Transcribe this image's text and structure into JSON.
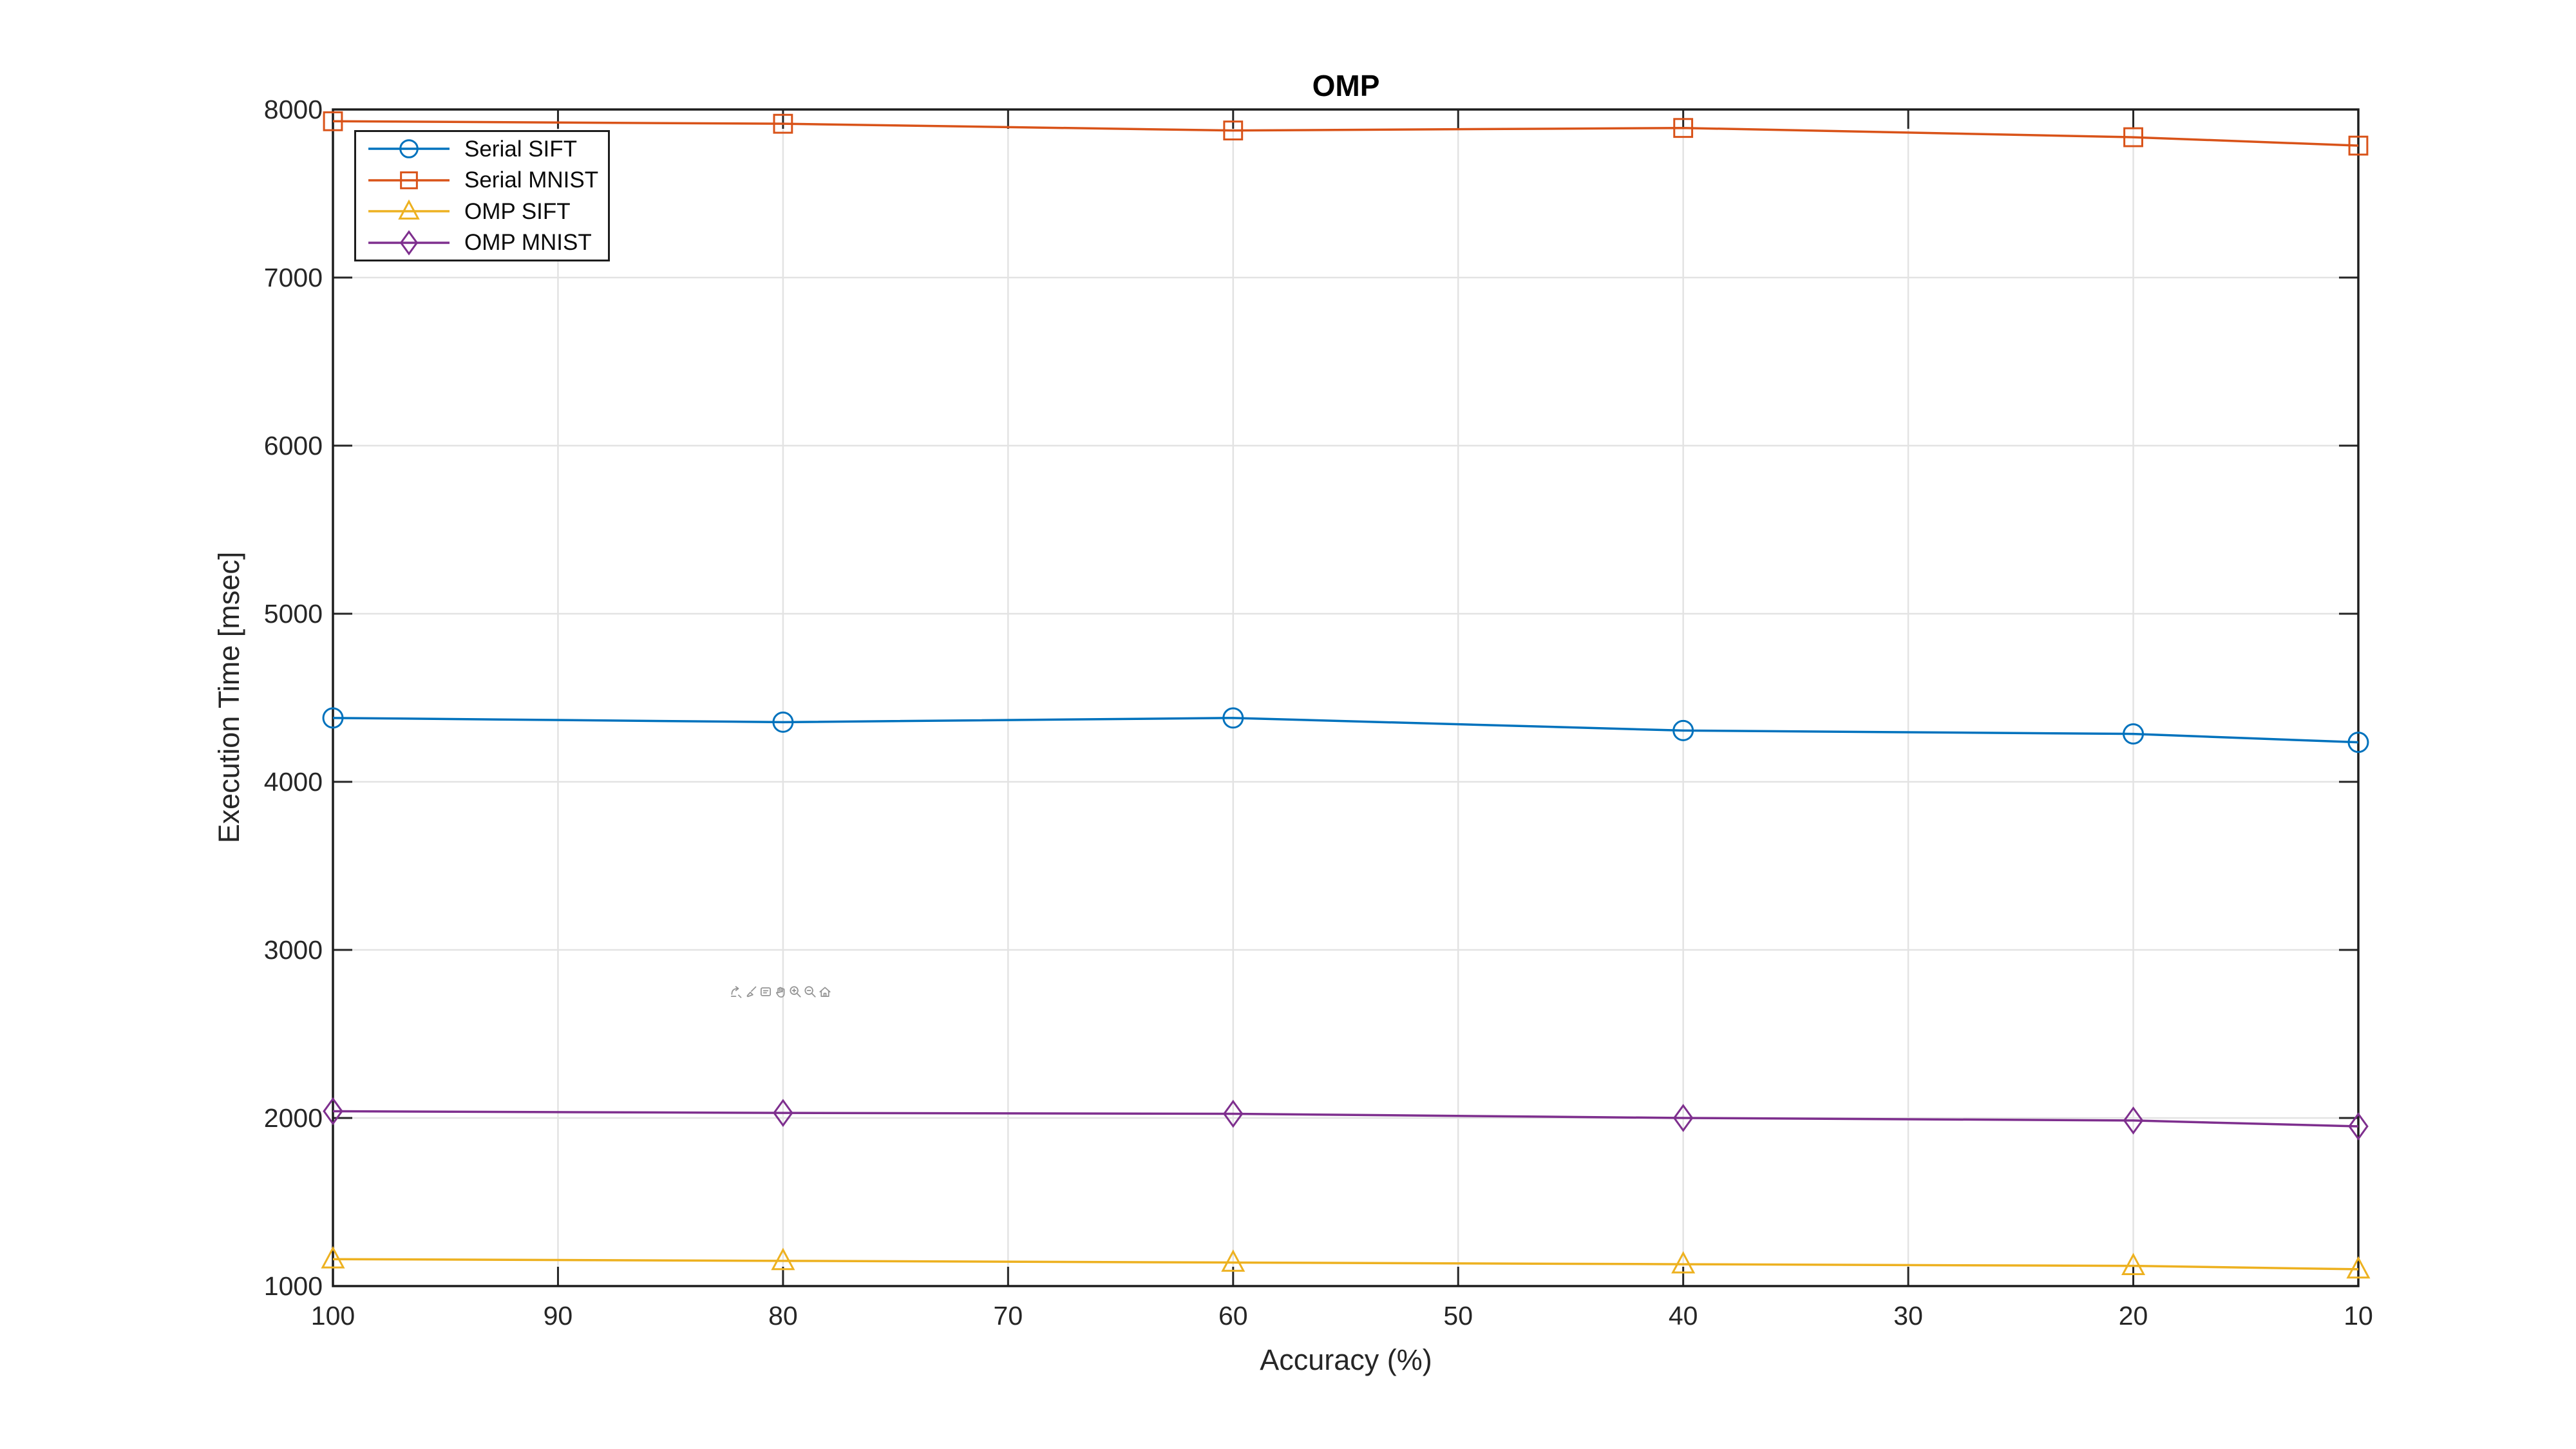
{
  "figure": {
    "background": "#ffffff"
  },
  "chart_data": {
    "type": "line",
    "title": "OMP",
    "xlabel": "Accuracy (%)",
    "ylabel": "Execution Time [msec]",
    "x_axis_reversed": true,
    "xlim": [
      100,
      10
    ],
    "ylim": [
      1000,
      8000
    ],
    "x_ticks": [
      100,
      90,
      80,
      70,
      60,
      50,
      40,
      30,
      20,
      10
    ],
    "y_ticks": [
      1000,
      2000,
      3000,
      4000,
      5000,
      6000,
      7000,
      8000
    ],
    "grid": true,
    "legend_position": "top-left",
    "x": [
      100,
      80,
      60,
      40,
      20,
      10
    ],
    "series": [
      {
        "name": "Serial SIFT",
        "color": "#0072BD",
        "marker": "circle",
        "values": [
          4380,
          4355,
          4380,
          4305,
          4285,
          4235
        ]
      },
      {
        "name": "Serial MNIST",
        "color": "#D95319",
        "marker": "square",
        "values": [
          7930,
          7915,
          7875,
          7890,
          7835,
          7785
        ]
      },
      {
        "name": "OMP SIFT",
        "color": "#EDB120",
        "marker": "triangle-up",
        "values": [
          1160,
          1150,
          1140,
          1130,
          1120,
          1100
        ]
      },
      {
        "name": "OMP MNIST",
        "color": "#7E2F8E",
        "marker": "diamond",
        "values": [
          2040,
          2030,
          2025,
          2000,
          1985,
          1950
        ]
      }
    ],
    "axis_color": "#262626",
    "grid_color": "#e3e3e3",
    "box_color": "#1d1d1d"
  },
  "toolbar": {
    "color": "#8c8c8c",
    "icons": [
      "export",
      "brush",
      "datatip",
      "pan",
      "zoom-in",
      "zoom-out",
      "home"
    ]
  }
}
